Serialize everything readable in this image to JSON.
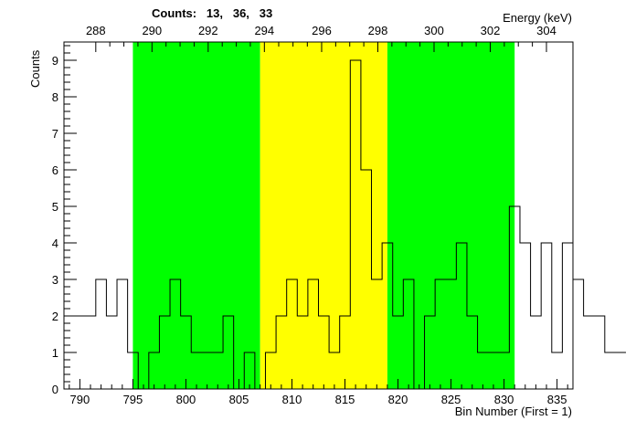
{
  "chart_data": {
    "type": "bar",
    "style": "step-histogram",
    "xlabel": "Bin Number (First = 1)",
    "ylabel": "Counts",
    "top_axis_label": "Energy (keV)",
    "counts_text": "Counts:   13,   36,   33",
    "xlim": [
      788.5,
      836.5
    ],
    "ylim": [
      0,
      9.5
    ],
    "x_ticks": [
      790,
      795,
      800,
      805,
      810,
      815,
      820,
      825,
      830,
      835
    ],
    "y_ticks": [
      0,
      1,
      2,
      3,
      4,
      5,
      6,
      7,
      8,
      9
    ],
    "top_ticks": [
      {
        "bin": 791.5,
        "label": "288"
      },
      {
        "bin": 796.8,
        "label": "290"
      },
      {
        "bin": 802.1,
        "label": "292"
      },
      {
        "bin": 807.4,
        "label": "294"
      },
      {
        "bin": 812.8,
        "label": "296"
      },
      {
        "bin": 818.1,
        "label": "298"
      },
      {
        "bin": 823.4,
        "label": "300"
      },
      {
        "bin": 828.7,
        "label": "302"
      },
      {
        "bin": 834.0,
        "label": "304"
      }
    ],
    "bins_start": 788.5,
    "bin_width": 1,
    "values": [
      2,
      2,
      2,
      3,
      2,
      3,
      1,
      0,
      1,
      2,
      3,
      2,
      1,
      1,
      1,
      2,
      0,
      1,
      0,
      1,
      2,
      3,
      2,
      3,
      2,
      1,
      2,
      9,
      6,
      3,
      4,
      2,
      3,
      0,
      2,
      3,
      3,
      4,
      2,
      1,
      1,
      1,
      5,
      4,
      2,
      4,
      1,
      4,
      3,
      2,
      2,
      1,
      1
    ],
    "regions": [
      {
        "name": "background-left",
        "from": 795,
        "to": 807,
        "color": "#00ff00"
      },
      {
        "name": "peak",
        "from": 807,
        "to": 819,
        "color": "#ffff00"
      },
      {
        "name": "background-right",
        "from": 819,
        "to": 831,
        "color": "#00ff00"
      }
    ],
    "line_color": "#000000"
  }
}
